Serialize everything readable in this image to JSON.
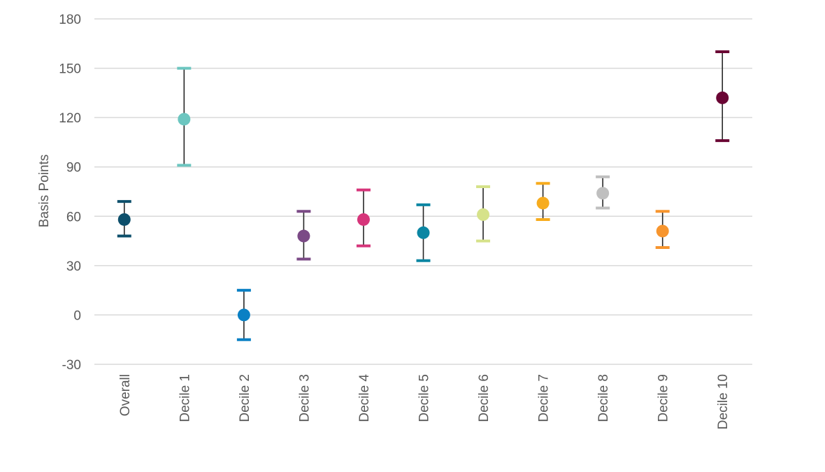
{
  "chart_data": {
    "type": "scatter",
    "title": "",
    "ylabel": "Basis Points",
    "xlabel": "",
    "ylim": [
      -30,
      180
    ],
    "yticks": [
      -30,
      0,
      30,
      60,
      90,
      120,
      150,
      180
    ],
    "grid": true,
    "legend": "none",
    "categories": [
      "Overall",
      "Decile 1",
      "Decile 2",
      "Decile 3",
      "Decile 4",
      "Decile 5",
      "Decile 6",
      "Decile 7",
      "Decile 8",
      "Decile 9",
      "Decile 10"
    ],
    "series": [
      {
        "values": [
          58,
          119,
          0,
          48,
          58,
          50,
          61,
          68,
          74,
          51,
          132
        ],
        "lower": [
          48,
          91,
          -15,
          34,
          42,
          33,
          45,
          58,
          65,
          41,
          106
        ],
        "upper": [
          69,
          150,
          15,
          63,
          76,
          67,
          78,
          80,
          84,
          63,
          160
        ],
        "colors": [
          "#0d4f6b",
          "#6cc6c0",
          "#0a80c4",
          "#7b4a86",
          "#d6357a",
          "#0b86a3",
          "#d6e28a",
          "#f7ac1e",
          "#bfbfbf",
          "#f7952e",
          "#6a0534"
        ]
      }
    ]
  }
}
